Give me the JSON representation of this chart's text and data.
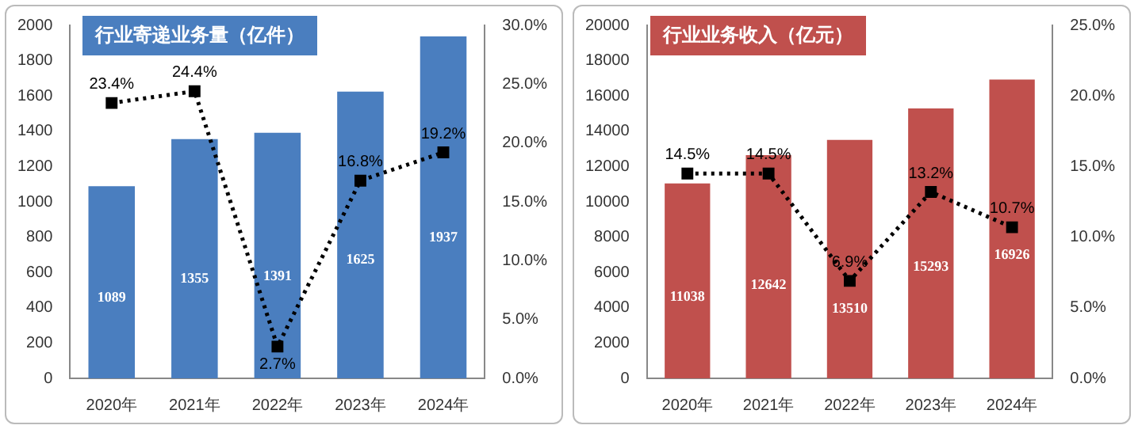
{
  "chart_data": [
    {
      "type": "bar",
      "title": "行业寄递业务量（亿件）",
      "categories": [
        "2020年",
        "2021年",
        "2022年",
        "2023年",
        "2024年"
      ],
      "series": [
        {
          "color": "#4a7ebf",
          "values": [
            1089,
            1355,
            1391,
            1625,
            1937
          ],
          "value_labels": [
            "1089",
            "1355",
            "1391",
            "1625",
            "1937"
          ]
        },
        {
          "type": "line",
          "axis": "y2",
          "color": "#000000",
          "values": [
            23.4,
            24.4,
            2.7,
            16.8,
            19.2
          ],
          "value_labels": [
            "23.4%",
            "24.4%",
            "2.7%",
            "16.8%",
            "19.2%"
          ]
        }
      ],
      "marker": "square",
      "line_style": "dotted",
      "ylim": [
        0,
        2000
      ],
      "yticks": [
        0,
        200,
        400,
        600,
        800,
        1000,
        1200,
        1400,
        1600,
        1800,
        2000
      ],
      "y2lim": [
        0,
        30
      ],
      "y2ticks": [
        {
          "value": 0,
          "label": "0.0%"
        },
        {
          "value": 5,
          "label": "5.0%"
        },
        {
          "value": 10,
          "label": "10.0%"
        },
        {
          "value": 15,
          "label": "15.0%"
        },
        {
          "value": 20,
          "label": "20.0%"
        },
        {
          "value": 25,
          "label": "25.0%"
        },
        {
          "value": 30,
          "label": "30.0%"
        }
      ]
    },
    {
      "type": "bar",
      "title": "行业业务收入（亿元）",
      "categories": [
        "2020年",
        "2021年",
        "2022年",
        "2023年",
        "2024年"
      ],
      "series": [
        {
          "color": "#c0504d",
          "values": [
            11038,
            12642,
            13510,
            15293,
            16926
          ],
          "value_labels": [
            "11038",
            "12642",
            "13510",
            "15293",
            "16926"
          ]
        },
        {
          "type": "line",
          "axis": "y2",
          "color": "#000000",
          "values": [
            14.5,
            14.5,
            6.9,
            13.2,
            10.7
          ],
          "value_labels": [
            "14.5%",
            "14.5%",
            "6.9%",
            "13.2%",
            "10.7%"
          ]
        }
      ],
      "marker": "square",
      "line_style": "dotted",
      "ylim": [
        0,
        20000
      ],
      "yticks": [
        0,
        2000,
        4000,
        6000,
        8000,
        10000,
        12000,
        14000,
        16000,
        18000,
        20000
      ],
      "y2lim": [
        0,
        25
      ],
      "y2ticks": [
        {
          "value": 0,
          "label": "0.0%"
        },
        {
          "value": 5,
          "label": "5.0%"
        },
        {
          "value": 10,
          "label": "10.0%"
        },
        {
          "value": 15,
          "label": "15.0%"
        },
        {
          "value": 20,
          "label": "20.0%"
        },
        {
          "value": 25,
          "label": "25.0%"
        }
      ]
    }
  ]
}
